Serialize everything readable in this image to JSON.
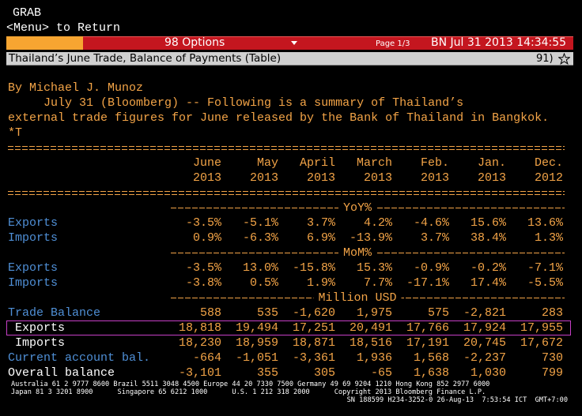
{
  "header": {
    "app": "GRAB",
    "return_hint": "<Menu> to Return",
    "options": "98 Options",
    "page": "Page 1/3",
    "timestamp": "BN Jul 31 2013 14:34:55",
    "headline": "Thailand’s June Trade, Balance of Payments (Table)",
    "story_number": "91)"
  },
  "story": {
    "byline": "By Michael J. Munoz",
    "lines": [
      "     July 31 (Bloomberg) -- Following is a summary of Thailand’s",
      "external trade figures for June released by the Bank of Thailand in Bangkok.",
      "*T"
    ]
  },
  "table": {
    "columns": [
      {
        "month": "June",
        "year": "2013"
      },
      {
        "month": "May",
        "year": "2013"
      },
      {
        "month": "April",
        "year": "2013"
      },
      {
        "month": "March",
        "year": "2013"
      },
      {
        "month": "Feb.",
        "year": "2013"
      },
      {
        "month": "Jan.",
        "year": "2013"
      },
      {
        "month": "Dec.",
        "year": "2012"
      }
    ],
    "sections": [
      {
        "title": "YoY%",
        "rows": [
          {
            "label": "Exports",
            "color": "#4f8fd6",
            "values": [
              "-3.5%",
              "-5.1%",
              "3.7%",
              "4.2%",
              "-4.6%",
              "15.6%",
              "13.6%"
            ]
          },
          {
            "label": "Imports",
            "color": "#4f8fd6",
            "values": [
              "0.9%",
              "-6.3%",
              "6.9%",
              "-13.9%",
              "3.7%",
              "38.4%",
              "1.3%"
            ]
          }
        ]
      },
      {
        "title": "MoM%",
        "rows": [
          {
            "label": "Exports",
            "color": "#4f8fd6",
            "values": [
              "-3.5%",
              "13.0%",
              "-15.8%",
              "15.3%",
              "-0.9%",
              "-0.2%",
              "-7.1%"
            ]
          },
          {
            "label": "Imports",
            "color": "#4f8fd6",
            "values": [
              "-3.8%",
              "0.5%",
              "1.9%",
              "7.7%",
              "-17.1%",
              "17.4%",
              "-5.5%"
            ]
          }
        ]
      },
      {
        "title": "Million USD",
        "rows": [
          {
            "label": "Trade Balance",
            "color": "#4f8fd6",
            "values": [
              "588",
              "535",
              "-1,620",
              "1,975",
              "575",
              "-2,821",
              "283"
            ]
          },
          {
            "label": " Exports",
            "color": "#ffffff",
            "highlight": true,
            "values": [
              "18,818",
              "19,494",
              "17,251",
              "20,491",
              "17,766",
              "17,924",
              "17,955"
            ]
          },
          {
            "label": " Imports",
            "color": "#ffffff",
            "values": [
              "18,230",
              "18,959",
              "18,871",
              "18,516",
              "17,191",
              "20,745",
              "17,672"
            ]
          },
          {
            "label": "Current account bal.",
            "color": "#4f8fd6",
            "values": [
              "-664",
              "-1,051",
              "-3,361",
              "1,936",
              "1,568",
              "-2,237",
              "730"
            ]
          },
          {
            "label": "Overall balance",
            "color": "#ffffff",
            "values": [
              "-3,101",
              "355",
              "305",
              "-65",
              "1,638",
              "1,030",
              "799"
            ]
          }
        ]
      }
    ]
  },
  "footer": {
    "lines": [
      "Australia 61 2 9777 8600 Brazil 5511 3048 4500 Europe 44 20 7330 7500 Germany 49 69 9204 1210 Hong Kong 852 2977 6000",
      "Japan 81 3 3201 8900      Singapore 65 6212 1000      U.S. 1 212 318 2000      Copyright 2013 Bloomberg Finance L.P.",
      "SN 188599 H234-3252-0 26-Aug-13  7:53:54 ICT  GMT+7:00"
    ]
  }
}
